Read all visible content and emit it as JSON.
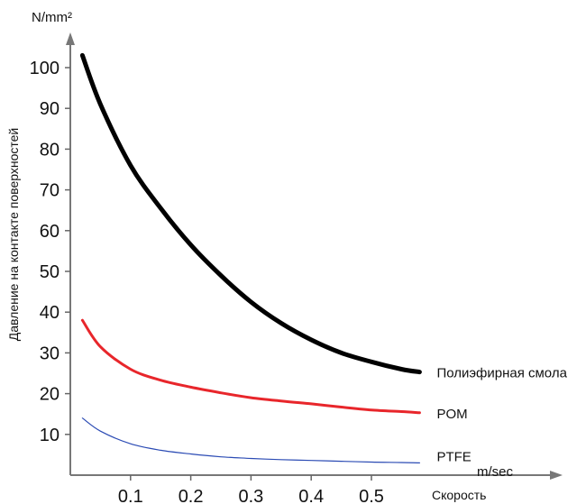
{
  "chart_data": {
    "type": "line",
    "y_unit": "N/mm²",
    "x_unit": "m/sec",
    "xlabel": "Скорость",
    "ylabel": "Давление на контакте поверхностей",
    "x_ticks": [
      "0.1",
      "0.2",
      "0.3",
      "0.4",
      "0.5"
    ],
    "y_ticks": [
      "10",
      "20",
      "30",
      "40",
      "50",
      "60",
      "70",
      "80",
      "90",
      "100"
    ],
    "xlim": [
      0,
      0.6
    ],
    "ylim": [
      0,
      105
    ],
    "grid": false,
    "legend": "none",
    "series": [
      {
        "name": "Полиэфирная смола",
        "color": "#000000",
        "x": [
          0.02,
          0.05,
          0.1,
          0.15,
          0.2,
          0.25,
          0.3,
          0.35,
          0.4,
          0.45,
          0.5,
          0.55,
          0.58
        ],
        "y": [
          103,
          91,
          76,
          65.5,
          56.5,
          49,
          42.5,
          37.3,
          33.2,
          30,
          27.8,
          26,
          25.3
        ]
      },
      {
        "name": "POM",
        "color": "#e8262b",
        "x": [
          0.02,
          0.05,
          0.1,
          0.15,
          0.2,
          0.25,
          0.3,
          0.35,
          0.4,
          0.45,
          0.5,
          0.55,
          0.58
        ],
        "y": [
          38,
          31.5,
          26,
          23.3,
          21.6,
          20.2,
          19,
          18.2,
          17.5,
          16.7,
          16,
          15.6,
          15.3
        ]
      },
      {
        "name": "PTFE",
        "color": "#2b4bb4",
        "x": [
          0.02,
          0.05,
          0.1,
          0.15,
          0.2,
          0.25,
          0.3,
          0.35,
          0.4,
          0.45,
          0.5,
          0.55,
          0.58
        ],
        "y": [
          14,
          10.8,
          7.7,
          6.1,
          5.2,
          4.5,
          4.1,
          3.8,
          3.6,
          3.4,
          3.2,
          3.1,
          3.0
        ]
      }
    ]
  }
}
